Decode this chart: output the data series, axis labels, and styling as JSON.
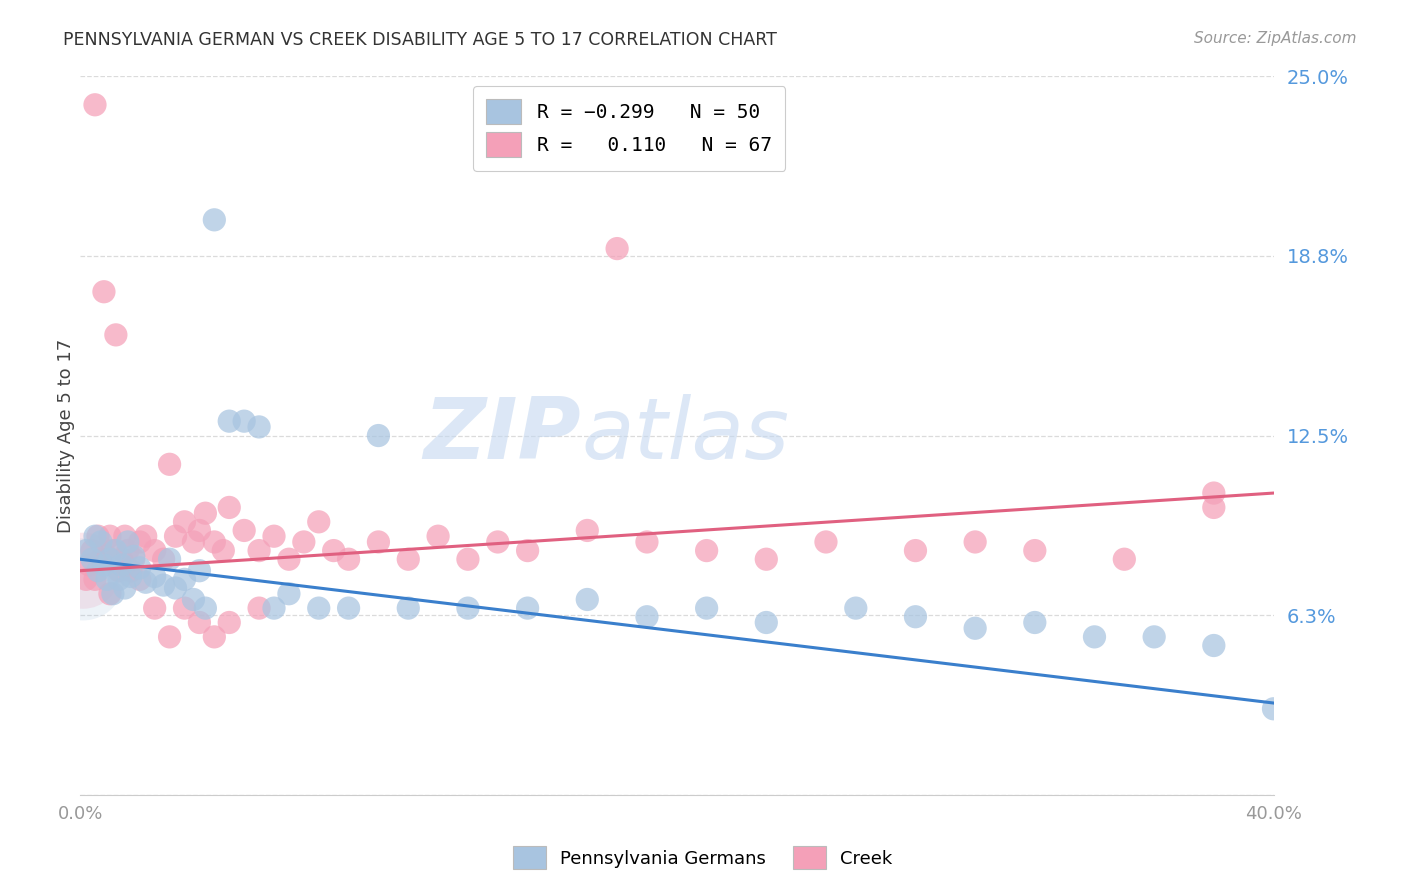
{
  "title": "PENNSYLVANIA GERMAN VS CREEK DISABILITY AGE 5 TO 17 CORRELATION CHART",
  "source": "Source: ZipAtlas.com",
  "ylabel": "Disability Age 5 to 17",
  "xmin": 0.0,
  "xmax": 0.4,
  "ymin": 0.0,
  "ymax": 0.25,
  "ytick_vals": [
    0.0,
    0.0625,
    0.125,
    0.1875,
    0.25
  ],
  "ytick_labels": [
    "",
    "6.3%",
    "12.5%",
    "18.8%",
    "25.0%"
  ],
  "pa_german_color": "#a8c4e0",
  "creek_color": "#f4a0b8",
  "pa_german_line_color": "#3a7fcc",
  "creek_line_color": "#e06080",
  "background_color": "#ffffff",
  "grid_color": "#d8d8d8",
  "title_color": "#333333",
  "right_axis_color": "#5599dd",
  "watermark_color": "#c5d8f0",
  "pa_german_x": [
    0.002,
    0.004,
    0.005,
    0.006,
    0.007,
    0.008,
    0.009,
    0.01,
    0.011,
    0.012,
    0.013,
    0.014,
    0.015,
    0.016,
    0.017,
    0.018,
    0.02,
    0.022,
    0.025,
    0.028,
    0.03,
    0.032,
    0.035,
    0.038,
    0.04,
    0.042,
    0.045,
    0.05,
    0.055,
    0.06,
    0.065,
    0.07,
    0.08,
    0.09,
    0.1,
    0.11,
    0.13,
    0.15,
    0.17,
    0.19,
    0.21,
    0.23,
    0.26,
    0.28,
    0.3,
    0.32,
    0.34,
    0.36,
    0.38,
    0.4
  ],
  "pa_german_y": [
    0.085,
    0.082,
    0.09,
    0.078,
    0.088,
    0.08,
    0.075,
    0.082,
    0.07,
    0.085,
    0.075,
    0.08,
    0.072,
    0.088,
    0.076,
    0.083,
    0.079,
    0.074,
    0.076,
    0.073,
    0.082,
    0.072,
    0.075,
    0.068,
    0.078,
    0.065,
    0.2,
    0.13,
    0.13,
    0.128,
    0.065,
    0.07,
    0.065,
    0.065,
    0.125,
    0.065,
    0.065,
    0.065,
    0.068,
    0.062,
    0.065,
    0.06,
    0.065,
    0.062,
    0.058,
    0.06,
    0.055,
    0.055,
    0.052,
    0.03
  ],
  "creek_x": [
    0.002,
    0.003,
    0.004,
    0.005,
    0.006,
    0.007,
    0.008,
    0.009,
    0.01,
    0.011,
    0.012,
    0.013,
    0.014,
    0.015,
    0.016,
    0.017,
    0.018,
    0.02,
    0.022,
    0.025,
    0.028,
    0.03,
    0.032,
    0.035,
    0.038,
    0.04,
    0.042,
    0.045,
    0.048,
    0.05,
    0.055,
    0.06,
    0.065,
    0.07,
    0.075,
    0.08,
    0.085,
    0.09,
    0.1,
    0.11,
    0.12,
    0.13,
    0.14,
    0.15,
    0.17,
    0.19,
    0.21,
    0.23,
    0.25,
    0.28,
    0.3,
    0.32,
    0.35,
    0.38,
    0.005,
    0.01,
    0.015,
    0.02,
    0.025,
    0.03,
    0.035,
    0.04,
    0.045,
    0.05,
    0.06,
    0.18,
    0.38
  ],
  "creek_y": [
    0.075,
    0.08,
    0.085,
    0.24,
    0.09,
    0.082,
    0.175,
    0.083,
    0.09,
    0.085,
    0.16,
    0.078,
    0.082,
    0.09,
    0.085,
    0.078,
    0.082,
    0.088,
    0.09,
    0.085,
    0.082,
    0.115,
    0.09,
    0.095,
    0.088,
    0.092,
    0.098,
    0.088,
    0.085,
    0.1,
    0.092,
    0.085,
    0.09,
    0.082,
    0.088,
    0.095,
    0.085,
    0.082,
    0.088,
    0.082,
    0.09,
    0.082,
    0.088,
    0.085,
    0.092,
    0.088,
    0.085,
    0.082,
    0.088,
    0.085,
    0.088,
    0.085,
    0.082,
    0.1,
    0.075,
    0.07,
    0.08,
    0.075,
    0.065,
    0.055,
    0.065,
    0.06,
    0.055,
    0.06,
    0.065,
    0.19,
    0.105
  ],
  "pa_line_x0": 0.0,
  "pa_line_y0": 0.082,
  "pa_line_x1": 0.4,
  "pa_line_y1": 0.032,
  "creek_line_x0": 0.0,
  "creek_line_y0": 0.078,
  "creek_line_x1": 0.4,
  "creek_line_y1": 0.105
}
